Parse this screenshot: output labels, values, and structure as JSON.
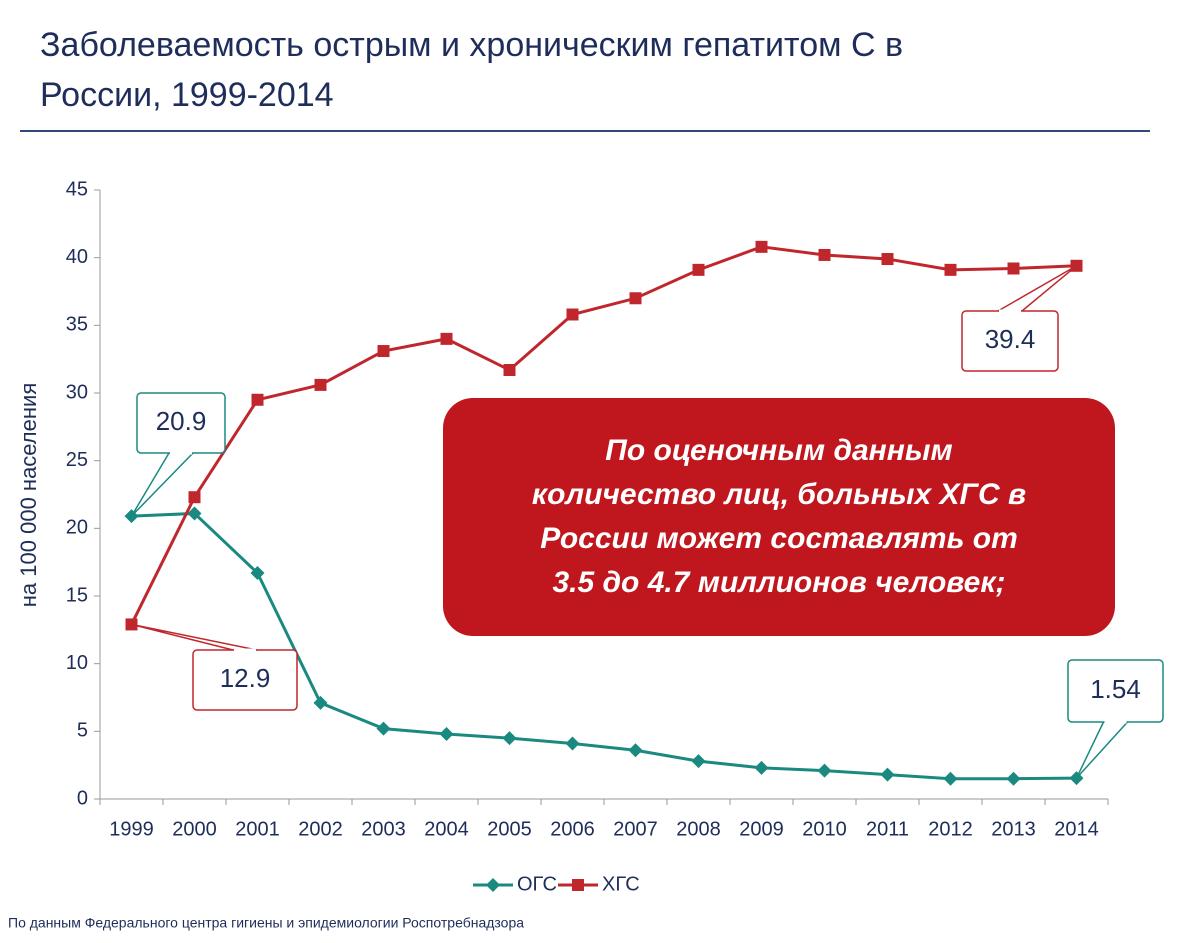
{
  "chart_data": {
    "type": "line",
    "title": "Заболеваемость острым и хроническим гепатитом С в России, 1999-2014",
    "ylabel": "на 100 000 населения",
    "categories": [
      "1999",
      "2000",
      "2001",
      "2002",
      "2003",
      "2004",
      "2005",
      "2006",
      "2007",
      "2008",
      "2009",
      "2010",
      "2011",
      "2012",
      "2013",
      "2014"
    ],
    "series": [
      {
        "name": "ОГС",
        "color": "#1a8a80",
        "marker": "diamond",
        "values": [
          20.9,
          21.1,
          16.7,
          7.1,
          5.2,
          4.8,
          4.5,
          4.1,
          3.6,
          2.8,
          2.3,
          2.1,
          1.8,
          1.5,
          1.5,
          1.54
        ]
      },
      {
        "name": "ХГС",
        "color": "#c0272d",
        "marker": "square",
        "values": [
          12.9,
          22.3,
          29.5,
          30.6,
          33.1,
          34.0,
          31.7,
          35.8,
          37.0,
          39.1,
          40.8,
          40.2,
          39.9,
          39.1,
          39.2,
          39.4
        ]
      }
    ],
    "ylim": [
      0,
      45
    ],
    "yticks": [
      0,
      5,
      10,
      15,
      20,
      25,
      30,
      35,
      40,
      45
    ],
    "grid": false,
    "legend": "bottom",
    "annotation": [
      "По оценочным данным",
      "количество лиц, больных ХГС в",
      "России может составлять от",
      "3.5 до 4.7 миллионов человек;"
    ],
    "source": "По данным Федерального центра гигиены и эпидемиологии Роспотребнадзора"
  }
}
